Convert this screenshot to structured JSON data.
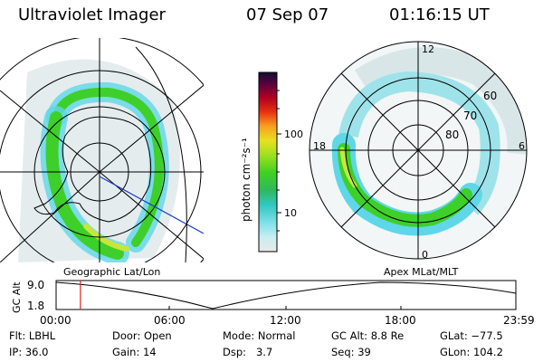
{
  "header": {
    "instrument": "Ultraviolet Imager",
    "date": "07 Sep 07",
    "time": "01:16:15 UT"
  },
  "colors": {
    "aurora_green": "#3ecf2a",
    "aurora_cyan": "#5fd7e8",
    "aurora_faint": "#d8e6e8",
    "aurora_yellow": "#c8e63a",
    "track_line": "#1a3cc8",
    "time_marker": "#e02020"
  },
  "left_map": {
    "label": "Geographic Lat/Lon"
  },
  "right_map": {
    "label": "Apex  MLat/MLT",
    "mlt_labels": [
      "12",
      "18",
      "6",
      "0"
    ],
    "lat_labels": [
      "60",
      "70",
      "80"
    ]
  },
  "colorbar": {
    "unit_label": "photon cm⁻²s⁻¹",
    "ticks": [
      "100",
      "10"
    ],
    "scale": "log",
    "color_stops": [
      "#e8e8e8",
      "#9fe8f0",
      "#3cd0d8",
      "#2ab870",
      "#44d020",
      "#a8e020",
      "#e8e820",
      "#f8a020",
      "#e83010",
      "#b00020",
      "#700030",
      "#300040",
      "#101030"
    ]
  },
  "altitude_plot": {
    "ylabel": "GC Alt",
    "y_ticks": [
      "9.0",
      "1.8"
    ],
    "x_ticks": [
      "00:00",
      "06:00",
      "12:00",
      "18:00",
      "23:59"
    ],
    "marker_time_hours": 1.27
  },
  "status": {
    "filter_label": "Flt:",
    "filter_value": "LBHL",
    "ip_label": "IP:",
    "ip_value": "36.0",
    "door_label": "Door:",
    "door_value": "Open",
    "gain_label": "Gain:",
    "gain_value": "14",
    "mode_label": "Mode:",
    "mode_value": "Normal",
    "dsp_label": "Dsp:",
    "dsp_value": "3.7",
    "gcalt_label": "GC Alt:",
    "gcalt_value": "8.8 Re",
    "seq_label": "Seq:",
    "seq_value": "39",
    "glat_label": "GLat:",
    "glat_value": "−77.5",
    "glon_label": "GLon:",
    "glon_value": "104.2"
  }
}
